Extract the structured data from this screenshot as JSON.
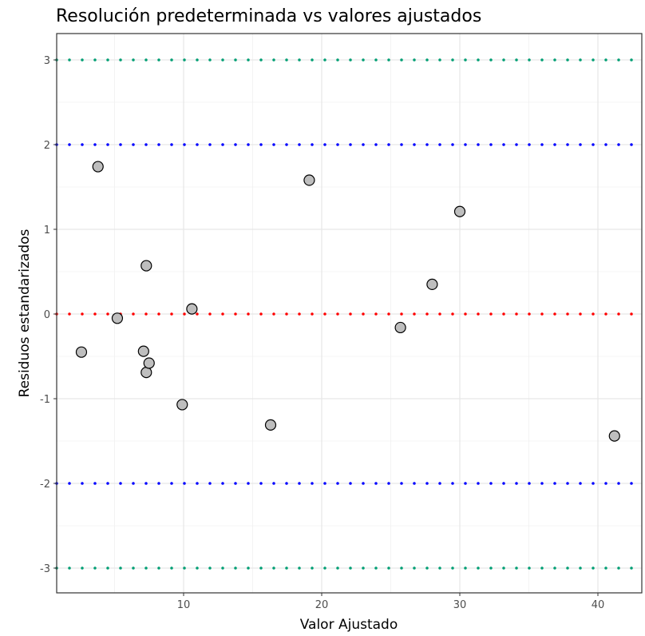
{
  "chart_data": {
    "type": "scatter",
    "title": "Resolución predeterminada vs valores ajustados",
    "xlabel": "Valor Ajustado",
    "ylabel": "Residuos estandarizados",
    "xlim": [
      0.9,
      42.6
    ],
    "ylim": [
      -3.3,
      3.3
    ],
    "xticks": [
      10,
      20,
      30,
      40
    ],
    "xtick_labels": [
      "10",
      "20",
      "30",
      "40"
    ],
    "yticks": [
      3,
      2,
      1,
      0,
      -1,
      -2,
      -3
    ],
    "ytick_labels": [
      "3",
      "2",
      "1",
      "0",
      "-1",
      "-2",
      "-3"
    ],
    "grid": true,
    "hlines": [
      {
        "y": 3,
        "color": "#009E73"
      },
      {
        "y": 2,
        "color": "#0000FF"
      },
      {
        "y": 0,
        "color": "#FF0000"
      },
      {
        "y": -2,
        "color": "#0000FF"
      },
      {
        "y": -3,
        "color": "#009E73"
      }
    ],
    "points": [
      {
        "x": 2.6,
        "y": -0.45
      },
      {
        "x": 3.8,
        "y": 1.74
      },
      {
        "x": 5.2,
        "y": -0.05
      },
      {
        "x": 7.1,
        "y": -0.44
      },
      {
        "x": 7.3,
        "y": 0.57
      },
      {
        "x": 7.3,
        "y": -0.69
      },
      {
        "x": 7.5,
        "y": -0.58
      },
      {
        "x": 9.9,
        "y": -1.07
      },
      {
        "x": 10.6,
        "y": 0.06
      },
      {
        "x": 16.3,
        "y": -1.31
      },
      {
        "x": 19.1,
        "y": 1.58
      },
      {
        "x": 25.7,
        "y": -0.16
      },
      {
        "x": 28.0,
        "y": 0.35
      },
      {
        "x": 30.0,
        "y": 1.21
      },
      {
        "x": 41.2,
        "y": -1.44
      }
    ],
    "point_color": "#BEBEBE"
  }
}
